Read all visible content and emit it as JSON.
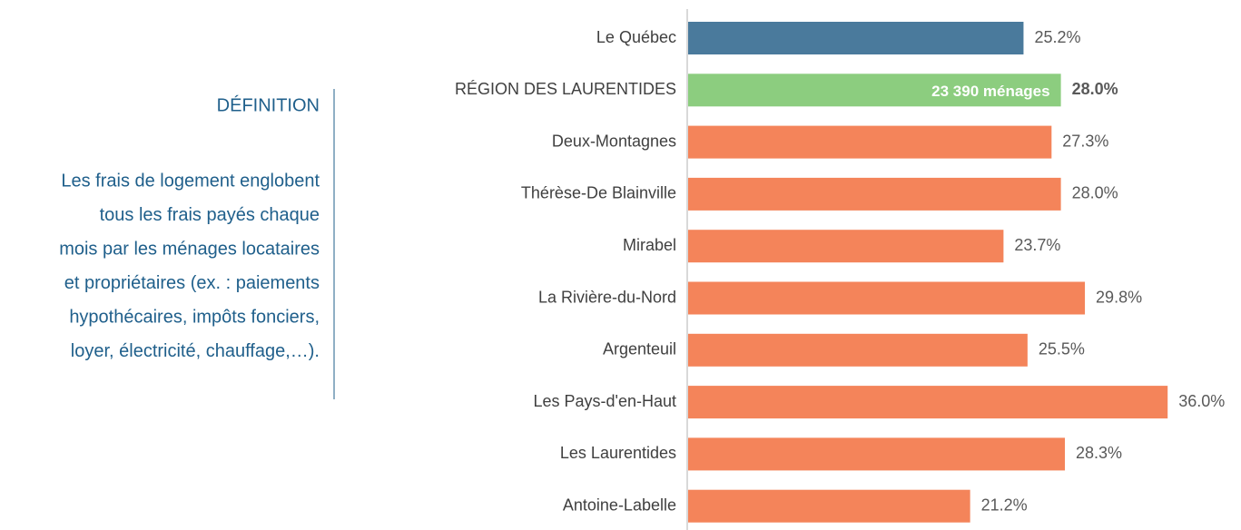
{
  "definition": {
    "title": "DÉFINITION",
    "lines": [
      "Les frais de logement englobent",
      "tous les frais payés chaque",
      "mois par les ménages locataires",
      "et propriétaires (ex. : paiements",
      "hypothécaires, impôts fonciers,",
      "loyer, électricité, chauffage,…)."
    ]
  },
  "chart_data": {
    "type": "hbar",
    "categories": [
      "Le Québec",
      "RÉGION DES LAURENTIDES",
      "Deux-Montagnes",
      "Thérèse-De Blainville",
      "Mirabel",
      "La Rivière-du-Nord",
      "Argenteuil",
      "Les Pays-d'en-Haut",
      "Les Laurentides",
      "Antoine-Labelle"
    ],
    "values": [
      25.2,
      28.0,
      27.3,
      28.0,
      23.7,
      29.8,
      25.5,
      36.0,
      28.3,
      21.2
    ],
    "value_labels": [
      "25.2%",
      "28.0%",
      "27.3%",
      "28.0%",
      "23.7%",
      "29.8%",
      "25.5%",
      "36.0%",
      "28.3%",
      "21.2%"
    ],
    "colors": [
      "#4a7a9c",
      "#8ccd7f",
      "#f4845a",
      "#f4845a",
      "#f4845a",
      "#f4845a",
      "#f4845a",
      "#f4845a",
      "#f4845a",
      "#f4845a"
    ],
    "annotation": "23 390 ménages",
    "xlim": [
      0,
      40
    ]
  }
}
